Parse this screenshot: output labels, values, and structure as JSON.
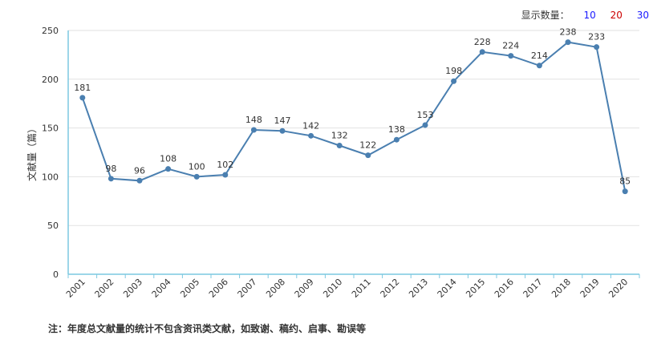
{
  "display_count": {
    "label": "显示数量：",
    "options": [
      {
        "text": "10",
        "color": "#1a1aff"
      },
      {
        "text": "20",
        "color": "#cc0000"
      },
      {
        "text": "30",
        "color": "#1a1aff"
      }
    ]
  },
  "footnote": "注：年度总文献量的统计不包含资讯类文献，如致谢、稿约、启事、勘误等",
  "colors": {
    "line": "#4a7fb0",
    "axis": "#7cc8e0",
    "grid": "#e2e2e2"
  },
  "chart_data": {
    "type": "line",
    "ylabel": "文献量（篇）",
    "ylim": [
      0,
      250
    ],
    "yticks": [
      0,
      50,
      100,
      150,
      200,
      250
    ],
    "grid": true,
    "categories": [
      "2001",
      "2002",
      "2003",
      "2004",
      "2005",
      "2006",
      "2007",
      "2008",
      "2009",
      "2010",
      "2011",
      "2012",
      "2013",
      "2014",
      "2015",
      "2016",
      "2017",
      "2018",
      "2019",
      "2020"
    ],
    "series": [
      {
        "values": [
          181,
          98,
          96,
          108,
          100,
          102,
          148,
          147,
          142,
          132,
          122,
          138,
          153,
          198,
          228,
          224,
          214,
          238,
          233,
          85
        ]
      }
    ]
  }
}
